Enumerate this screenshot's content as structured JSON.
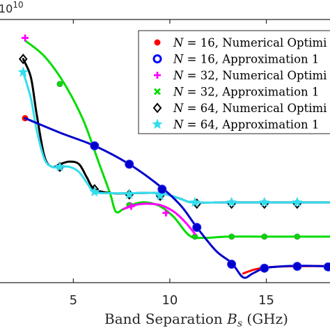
{
  "chart_data": {
    "type": "line",
    "xlabel": "Band Separation B_s (GHz)",
    "xlabel_parts": {
      "prefix": "Band Separation ",
      "var": "B",
      "sub": "s",
      "suffix": " (GHz)"
    },
    "x_ticks": [
      5,
      10,
      15
    ],
    "y_exponent": "10",
    "xlim": [
      1.2,
      18.3
    ],
    "ylim": [
      0,
      1.0
    ],
    "grid": false,
    "legend_position": "top-right",
    "legend": [
      {
        "n": "16",
        "label": ", Numerical Optimi",
        "marker": "filled-circle",
        "color": "#ff0000"
      },
      {
        "n": "16",
        "label": ", Approximation 1",
        "marker": "open-circle",
        "color": "#0000ff"
      },
      {
        "n": "32",
        "label": ", Numerical Optimi",
        "marker": "plus",
        "color": "#ff00ff"
      },
      {
        "n": "32",
        "label": ", Approximation 1",
        "marker": "x",
        "color": "#00dd00"
      },
      {
        "n": "64",
        "label": ", Numerical Optimi",
        "marker": "open-diamond",
        "color": "#000000"
      },
      {
        "n": "64",
        "label": ", Approximation 1",
        "marker": "star",
        "color": "#33ddee"
      }
    ],
    "series": [
      {
        "name": "N = 32, Approximation 1",
        "color": "#00dd00",
        "line_width": 3,
        "marker": "filled-circle-small",
        "curve": [
          [
            2.5,
            0.92
          ],
          [
            3.5,
            0.86
          ],
          [
            4.5,
            0.76
          ],
          [
            5.5,
            0.62
          ],
          [
            6.3,
            0.46
          ],
          [
            6.9,
            0.34
          ],
          [
            7.2,
            0.27
          ],
          [
            7.6,
            0.28
          ],
          [
            8.2,
            0.3
          ],
          [
            8.8,
            0.305
          ],
          [
            9.5,
            0.29
          ],
          [
            10.2,
            0.25
          ],
          [
            11.0,
            0.18
          ],
          [
            11.7,
            0.17
          ],
          [
            13,
            0.175
          ],
          [
            15,
            0.175
          ],
          [
            18.3,
            0.175
          ]
        ],
        "marker_points": [
          [
            4.3,
            0.755
          ],
          [
            7.9,
            0.295
          ],
          [
            11.3,
            0.175
          ],
          [
            13.2,
            0.175
          ],
          [
            14.9,
            0.175
          ],
          [
            16.6,
            0.175
          ]
        ]
      },
      {
        "name": "N = 64, Numerical Optimi",
        "color": "#000000",
        "line_width": 3,
        "marker": "open-diamond",
        "curve": [
          [
            2.4,
            0.85
          ],
          [
            2.8,
            0.78
          ],
          [
            3.1,
            0.64
          ],
          [
            3.5,
            0.48
          ],
          [
            3.9,
            0.44
          ],
          [
            4.3,
            0.45
          ],
          [
            4.8,
            0.46
          ],
          [
            5.3,
            0.45
          ],
          [
            5.7,
            0.4
          ],
          [
            6.1,
            0.355
          ],
          [
            7,
            0.34
          ],
          [
            8,
            0.34
          ],
          [
            9.5,
            0.34
          ],
          [
            10.5,
            0.32
          ],
          [
            11.2,
            0.305
          ],
          [
            13,
            0.305
          ],
          [
            15,
            0.305
          ],
          [
            18.3,
            0.305
          ]
        ],
        "marker_points": [
          [
            2.4,
            0.85
          ],
          [
            4.3,
            0.44
          ],
          [
            6.1,
            0.355
          ],
          [
            7.9,
            0.335
          ],
          [
            9.5,
            0.33
          ],
          [
            11.4,
            0.3
          ],
          [
            13.2,
            0.3
          ],
          [
            14.9,
            0.3
          ],
          [
            16.6,
            0.3
          ]
        ]
      },
      {
        "name": "N = 64, Approximation 1",
        "color": "#33ddee",
        "line_width": 3,
        "marker": "star",
        "curve": [
          [
            2.4,
            0.8
          ],
          [
            2.8,
            0.7
          ],
          [
            3.1,
            0.58
          ],
          [
            3.5,
            0.47
          ],
          [
            3.9,
            0.44
          ],
          [
            4.3,
            0.44
          ],
          [
            4.8,
            0.44
          ],
          [
            5.3,
            0.42
          ],
          [
            5.7,
            0.38
          ],
          [
            6.1,
            0.345
          ],
          [
            7,
            0.34
          ],
          [
            8,
            0.34
          ],
          [
            9.5,
            0.34
          ],
          [
            10.5,
            0.32
          ],
          [
            11.2,
            0.305
          ],
          [
            13,
            0.305
          ],
          [
            15,
            0.305
          ],
          [
            18.3,
            0.305
          ]
        ],
        "marker_points": [
          [
            2.4,
            0.8
          ],
          [
            4.3,
            0.44
          ],
          [
            6.1,
            0.345
          ],
          [
            7.9,
            0.335
          ],
          [
            9.5,
            0.33
          ],
          [
            11.3,
            0.305
          ],
          [
            13.2,
            0.305
          ],
          [
            14.9,
            0.305
          ],
          [
            16.6,
            0.305
          ]
        ]
      },
      {
        "name": "N = 32, Numerical Optimi",
        "color": "#ff00ff",
        "line_width": 3,
        "marker": "plus",
        "curve": [
          [
            7.6,
            0.28
          ],
          [
            8.2,
            0.295
          ],
          [
            8.8,
            0.3
          ],
          [
            9.5,
            0.295
          ],
          [
            10.2,
            0.27
          ],
          [
            10.8,
            0.23
          ],
          [
            11.3,
            0.185
          ]
        ],
        "marker_points": [
          [
            2.5,
            0.93
          ],
          [
            8.0,
            0.29
          ],
          [
            9.8,
            0.265
          ]
        ]
      },
      {
        "name": "N = 16, Numerical Optimi",
        "color": "#ff0000",
        "line_width": 3,
        "marker": "filled-circle",
        "curve": [
          [
            13.8,
            0.035
          ],
          [
            14.4,
            0.05
          ],
          [
            15,
            0.058
          ],
          [
            16,
            0.062
          ],
          [
            17,
            0.063
          ],
          [
            18.3,
            0.063
          ]
        ],
        "marker_points": [
          [
            2.5,
            0.625
          ]
        ]
      },
      {
        "name": "N = 16, Approximation 1",
        "color": "#0000cc",
        "line_width": 3,
        "marker": "filled-circle-big",
        "curve": [
          [
            2.5,
            0.625
          ],
          [
            4.3,
            0.57
          ],
          [
            6.1,
            0.52
          ],
          [
            7.9,
            0.45
          ],
          [
            9.6,
            0.36
          ],
          [
            10.6,
            0.29
          ],
          [
            11.4,
            0.21
          ],
          [
            12.4,
            0.12
          ],
          [
            13.2,
            0.075
          ],
          [
            13.8,
            0.02
          ],
          [
            14.3,
            0.035
          ],
          [
            14.9,
            0.055
          ],
          [
            15.8,
            0.062
          ],
          [
            16.8,
            0.064
          ],
          [
            18.3,
            0.062
          ]
        ],
        "marker_points": [
          [
            6.1,
            0.52
          ],
          [
            7.9,
            0.45
          ],
          [
            9.6,
            0.355
          ],
          [
            11.4,
            0.21
          ],
          [
            13.2,
            0.07
          ],
          [
            14.9,
            0.055
          ],
          [
            16.6,
            0.062
          ],
          [
            18.2,
            0.06
          ]
        ]
      }
    ]
  }
}
